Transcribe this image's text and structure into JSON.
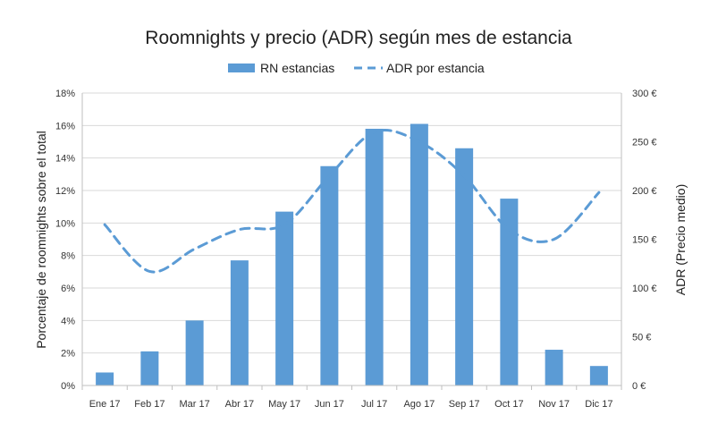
{
  "chart_data": {
    "type": "bar",
    "title": "Roomnights y precio (ADR) según mes de estancia",
    "categories": [
      "Ene 17",
      "Feb 17",
      "Mar 17",
      "Abr 17",
      "May 17",
      "Jun 17",
      "Jul 17",
      "Ago 17",
      "Sep 17",
      "Oct 17",
      "Nov 17",
      "Dic 17"
    ],
    "series": [
      {
        "name": "RN estancias",
        "type": "bar",
        "axis": "left",
        "color": "#5b9bd5",
        "values": [
          0.8,
          2.1,
          4.0,
          7.7,
          10.7,
          13.5,
          15.8,
          16.1,
          14.6,
          11.5,
          2.2,
          1.2
        ]
      },
      {
        "name": "ADR por estancia",
        "type": "line",
        "style": "dashed",
        "axis": "right",
        "color": "#5b9bd5",
        "values": [
          165,
          117,
          140,
          160,
          165,
          215,
          260,
          250,
          215,
          160,
          150,
          198
        ]
      }
    ],
    "ylabel": "Porcentaje de roomnights sobre el total",
    "ylim": [
      0,
      18
    ],
    "yticks": [
      "0%",
      "2%",
      "4%",
      "6%",
      "8%",
      "10%",
      "12%",
      "14%",
      "16%",
      "18%"
    ],
    "y2label": "ADR (Precio medio)",
    "y2lim": [
      0,
      300
    ],
    "y2ticks": [
      "0 €",
      "50 €",
      "100 €",
      "150 €",
      "200 €",
      "250 €",
      "300 €"
    ],
    "grid": true,
    "legend": "top-center"
  }
}
